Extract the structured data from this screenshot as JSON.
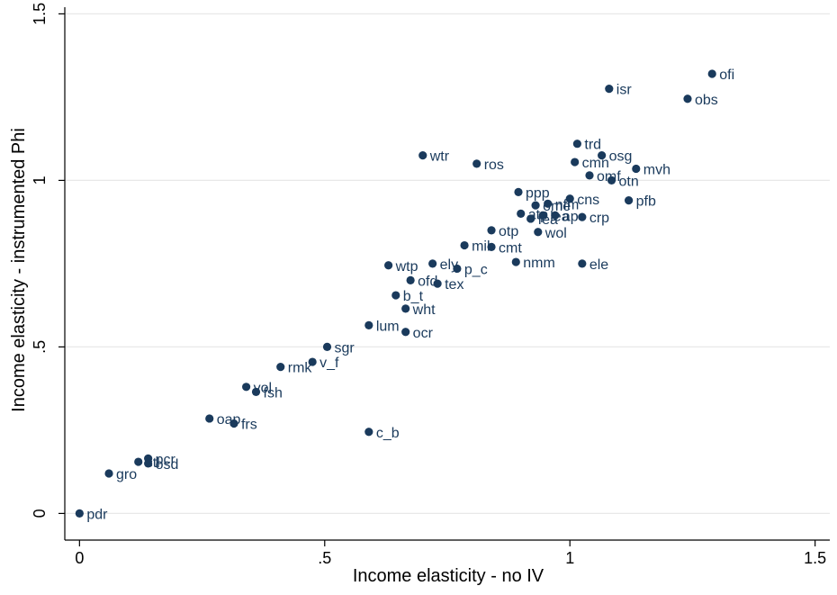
{
  "chart_data": {
    "type": "scatter",
    "xlabel": "Income elasticity - no IV",
    "ylabel": "Income elasticity - instrumented Phi",
    "xlim": [
      -0.03,
      1.53
    ],
    "ylim": [
      -0.08,
      1.52
    ],
    "xticks": [
      {
        "value": 0,
        "label": "0"
      },
      {
        "value": 0.5,
        "label": ".5"
      },
      {
        "value": 1,
        "label": "1"
      },
      {
        "value": 1.5,
        "label": "1.5"
      }
    ],
    "yticks": [
      {
        "value": 0,
        "label": "0"
      },
      {
        "value": 0.5,
        "label": ".5"
      },
      {
        "value": 1,
        "label": "1"
      },
      {
        "value": 1.5,
        "label": "1.5"
      }
    ],
    "grid": "horizontal",
    "marker_color": "#1a3a5c",
    "label_color": "#1a3a5c",
    "points": [
      {
        "x": 1.29,
        "y": 1.32,
        "label": "ofi"
      },
      {
        "x": 1.08,
        "y": 1.275,
        "label": "isr"
      },
      {
        "x": 1.24,
        "y": 1.245,
        "label": "obs"
      },
      {
        "x": 1.015,
        "y": 1.11,
        "label": "trd"
      },
      {
        "x": 0.7,
        "y": 1.075,
        "label": "wtr"
      },
      {
        "x": 1.065,
        "y": 1.075,
        "label": "osg"
      },
      {
        "x": 1.01,
        "y": 1.055,
        "label": "cmn"
      },
      {
        "x": 0.81,
        "y": 1.05,
        "label": "ros"
      },
      {
        "x": 1.135,
        "y": 1.035,
        "label": "mvh"
      },
      {
        "x": 1.04,
        "y": 1.015,
        "label": "omf"
      },
      {
        "x": 1.085,
        "y": 1.0,
        "label": "otn"
      },
      {
        "x": 0.895,
        "y": 0.965,
        "label": "ppp"
      },
      {
        "x": 1.0,
        "y": 0.945,
        "label": "cns"
      },
      {
        "x": 1.12,
        "y": 0.94,
        "label": "pfb"
      },
      {
        "x": 0.93,
        "y": 0.925,
        "label": "ome"
      },
      {
        "x": 0.955,
        "y": 0.93,
        "label": "nfm"
      },
      {
        "x": 0.9,
        "y": 0.9,
        "label": "atp"
      },
      {
        "x": 0.945,
        "y": 0.895,
        "label": "lea"
      },
      {
        "x": 0.97,
        "y": 0.895,
        "label": "ap"
      },
      {
        "x": 1.025,
        "y": 0.89,
        "label": "crp"
      },
      {
        "x": 0.92,
        "y": 0.885,
        "label": "fea"
      },
      {
        "x": 0.84,
        "y": 0.85,
        "label": "otp"
      },
      {
        "x": 0.935,
        "y": 0.845,
        "label": "wol"
      },
      {
        "x": 0.785,
        "y": 0.805,
        "label": "mil"
      },
      {
        "x": 0.84,
        "y": 0.8,
        "label": "cmt"
      },
      {
        "x": 0.89,
        "y": 0.755,
        "label": "nmm"
      },
      {
        "x": 0.72,
        "y": 0.75,
        "label": "ely"
      },
      {
        "x": 0.63,
        "y": 0.745,
        "label": "wtp"
      },
      {
        "x": 1.025,
        "y": 0.75,
        "label": "ele"
      },
      {
        "x": 0.77,
        "y": 0.735,
        "label": "p_c"
      },
      {
        "x": 0.675,
        "y": 0.7,
        "label": "ofd"
      },
      {
        "x": 0.73,
        "y": 0.69,
        "label": "tex"
      },
      {
        "x": 0.645,
        "y": 0.655,
        "label": "b_t"
      },
      {
        "x": 0.665,
        "y": 0.615,
        "label": "wht"
      },
      {
        "x": 0.59,
        "y": 0.565,
        "label": "lum"
      },
      {
        "x": 0.665,
        "y": 0.545,
        "label": "ocr"
      },
      {
        "x": 0.505,
        "y": 0.5,
        "label": "sgr"
      },
      {
        "x": 0.475,
        "y": 0.455,
        "label": "v_f"
      },
      {
        "x": 0.41,
        "y": 0.44,
        "label": "rmk"
      },
      {
        "x": 0.34,
        "y": 0.38,
        "label": "vol"
      },
      {
        "x": 0.36,
        "y": 0.365,
        "label": "fsh"
      },
      {
        "x": 0.265,
        "y": 0.285,
        "label": "oap"
      },
      {
        "x": 0.315,
        "y": 0.27,
        "label": "frs"
      },
      {
        "x": 0.59,
        "y": 0.245,
        "label": "c_b"
      },
      {
        "x": 0.14,
        "y": 0.165,
        "label": "pcr"
      },
      {
        "x": 0.12,
        "y": 0.155,
        "label": "ctl"
      },
      {
        "x": 0.14,
        "y": 0.15,
        "label": "osd"
      },
      {
        "x": 0.06,
        "y": 0.12,
        "label": "gro"
      },
      {
        "x": 0.0,
        "y": 0.0,
        "label": "pdr"
      }
    ]
  }
}
